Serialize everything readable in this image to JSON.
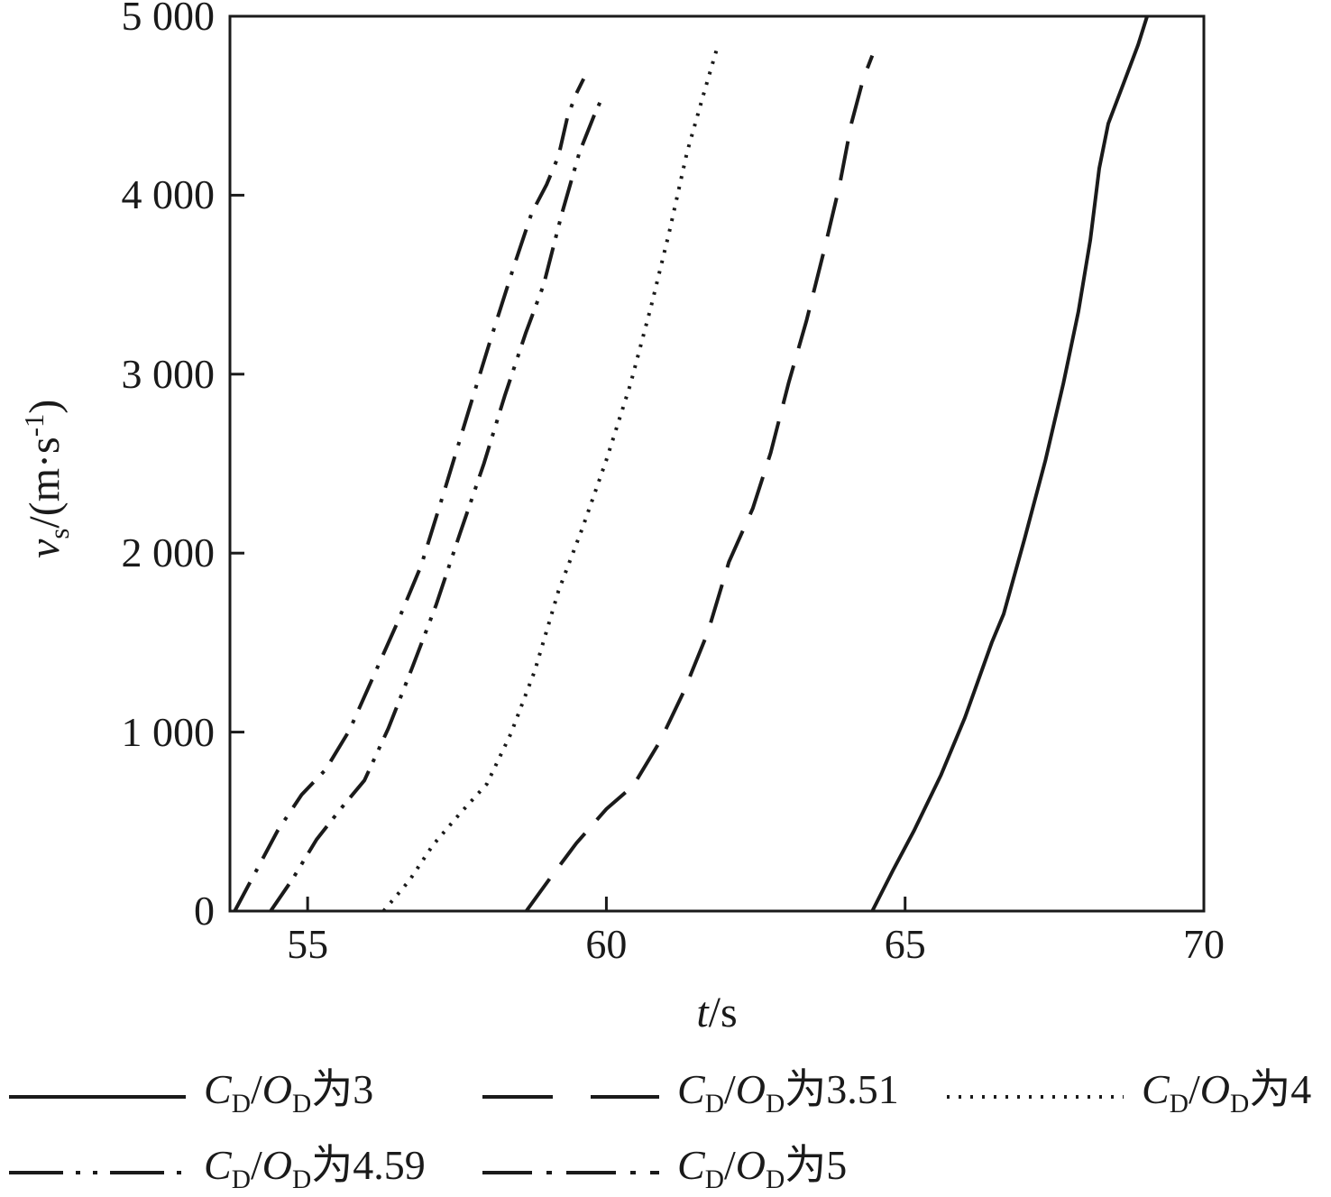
{
  "figure": {
    "background": "#ffffff",
    "line_color": "#1a1a1a"
  },
  "chart_data": {
    "type": "line",
    "title": "",
    "xlabel": "*t*/s",
    "ylabel": "*v*_{s}/(m·s^{-1})",
    "xlim": [
      53.7,
      70
    ],
    "ylim": [
      0,
      5000
    ],
    "grid": false,
    "legend_position": "below",
    "x_ticks": [
      {
        "v": 55,
        "label": "55"
      },
      {
        "v": 60,
        "label": "60"
      },
      {
        "v": 65,
        "label": "65"
      },
      {
        "v": 70,
        "label": "70"
      }
    ],
    "y_ticks": [
      {
        "v": 0,
        "label": "0"
      },
      {
        "v": 1000,
        "label": "1 000"
      },
      {
        "v": 2000,
        "label": "2 000"
      },
      {
        "v": 3000,
        "label": "3 000"
      },
      {
        "v": 4000,
        "label": "4 000"
      },
      {
        "v": 5000,
        "label": "5 000"
      }
    ],
    "series": [
      {
        "name": "*C*_{D}/*O*_{D}为3",
        "dash": "solid",
        "points": [
          [
            64.45,
            0
          ],
          [
            64.8,
            230
          ],
          [
            65.15,
            450
          ],
          [
            65.6,
            760
          ],
          [
            66.0,
            1080
          ],
          [
            66.45,
            1500
          ],
          [
            66.65,
            1660
          ],
          [
            67.0,
            2080
          ],
          [
            67.35,
            2520
          ],
          [
            67.65,
            2950
          ],
          [
            67.9,
            3350
          ],
          [
            68.1,
            3750
          ],
          [
            68.25,
            4150
          ],
          [
            68.4,
            4400
          ],
          [
            68.65,
            4620
          ],
          [
            68.9,
            4840
          ],
          [
            69.05,
            5000
          ]
        ]
      },
      {
        "name": "*C*_{D}/*O*_{D}为3.51",
        "dash": "long-dash",
        "points": [
          [
            58.66,
            0
          ],
          [
            59.05,
            180
          ],
          [
            59.5,
            380
          ],
          [
            60.0,
            570
          ],
          [
            60.45,
            700
          ],
          [
            60.9,
            950
          ],
          [
            61.3,
            1230
          ],
          [
            61.7,
            1560
          ],
          [
            62.05,
            1950
          ],
          [
            62.45,
            2250
          ],
          [
            62.75,
            2560
          ],
          [
            63.05,
            2950
          ],
          [
            63.35,
            3300
          ],
          [
            63.65,
            3700
          ],
          [
            63.9,
            4050
          ],
          [
            64.1,
            4400
          ],
          [
            64.3,
            4650
          ],
          [
            64.45,
            4780
          ]
        ]
      },
      {
        "name": "*C*_{D}/*O*_{D}为4",
        "dash": "dot",
        "points": [
          [
            56.27,
            0
          ],
          [
            56.7,
            170
          ],
          [
            57.1,
            370
          ],
          [
            57.55,
            545
          ],
          [
            58.0,
            710
          ],
          [
            58.4,
            990
          ],
          [
            58.8,
            1340
          ],
          [
            59.2,
            1790
          ],
          [
            59.6,
            2140
          ],
          [
            60.0,
            2520
          ],
          [
            60.4,
            2940
          ],
          [
            60.75,
            3380
          ],
          [
            61.05,
            3790
          ],
          [
            61.35,
            4240
          ],
          [
            61.65,
            4590
          ],
          [
            61.87,
            4840
          ]
        ]
      },
      {
        "name": "*C*_{D}/*O*_{D}为4.59",
        "dash": "dash-dot-dot",
        "points": [
          [
            54.38,
            0
          ],
          [
            54.75,
            180
          ],
          [
            55.15,
            400
          ],
          [
            55.55,
            570
          ],
          [
            55.95,
            730
          ],
          [
            56.35,
            1020
          ],
          [
            56.75,
            1360
          ],
          [
            57.15,
            1710
          ],
          [
            57.55,
            2110
          ],
          [
            57.95,
            2500
          ],
          [
            58.3,
            2880
          ],
          [
            58.65,
            3230
          ],
          [
            58.95,
            3500
          ],
          [
            59.25,
            3890
          ],
          [
            59.55,
            4240
          ],
          [
            59.8,
            4450
          ],
          [
            59.95,
            4560
          ]
        ]
      },
      {
        "name": "*C*_{D}/*O*_{D}为5",
        "dash": "dash-dot",
        "points": [
          [
            53.78,
            0
          ],
          [
            54.1,
            200
          ],
          [
            54.5,
            450
          ],
          [
            54.9,
            650
          ],
          [
            55.3,
            790
          ],
          [
            55.7,
            1010
          ],
          [
            56.1,
            1310
          ],
          [
            56.5,
            1610
          ],
          [
            56.9,
            1930
          ],
          [
            57.3,
            2360
          ],
          [
            57.7,
            2800
          ],
          [
            58.05,
            3180
          ],
          [
            58.45,
            3600
          ],
          [
            58.75,
            3900
          ],
          [
            59.0,
            4060
          ],
          [
            59.2,
            4220
          ],
          [
            59.35,
            4440
          ],
          [
            59.5,
            4570
          ],
          [
            59.62,
            4650
          ]
        ]
      }
    ],
    "legend_rows": [
      [
        0,
        1,
        2
      ],
      [
        3,
        4
      ]
    ]
  }
}
